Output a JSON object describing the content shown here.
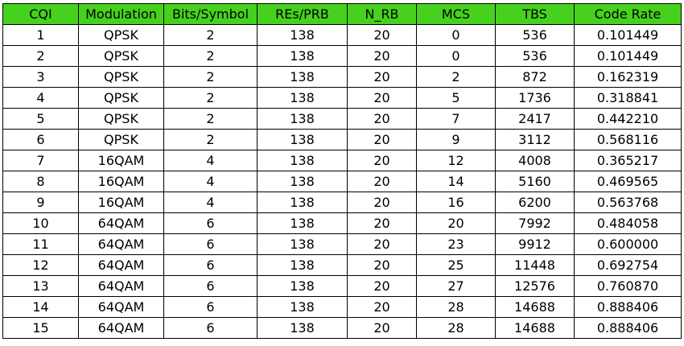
{
  "table": {
    "header_color": "#47d11f",
    "headers": [
      "CQI",
      "Modulation",
      "Bits/Symbol",
      "REs/PRB",
      "N_RB",
      "MCS",
      "TBS",
      "Code Rate"
    ],
    "rows": [
      [
        "1",
        "QPSK",
        "2",
        "138",
        "20",
        "0",
        "536",
        "0.101449"
      ],
      [
        "2",
        "QPSK",
        "2",
        "138",
        "20",
        "0",
        "536",
        "0.101449"
      ],
      [
        "3",
        "QPSK",
        "2",
        "138",
        "20",
        "2",
        "872",
        "0.162319"
      ],
      [
        "4",
        "QPSK",
        "2",
        "138",
        "20",
        "5",
        "1736",
        "0.318841"
      ],
      [
        "5",
        "QPSK",
        "2",
        "138",
        "20",
        "7",
        "2417",
        "0.442210"
      ],
      [
        "6",
        "QPSK",
        "2",
        "138",
        "20",
        "9",
        "3112",
        "0.568116"
      ],
      [
        "7",
        "16QAM",
        "4",
        "138",
        "20",
        "12",
        "4008",
        "0.365217"
      ],
      [
        "8",
        "16QAM",
        "4",
        "138",
        "20",
        "14",
        "5160",
        "0.469565"
      ],
      [
        "9",
        "16QAM",
        "4",
        "138",
        "20",
        "16",
        "6200",
        "0.563768"
      ],
      [
        "10",
        "64QAM",
        "6",
        "138",
        "20",
        "20",
        "7992",
        "0.484058"
      ],
      [
        "11",
        "64QAM",
        "6",
        "138",
        "20",
        "23",
        "9912",
        "0.600000"
      ],
      [
        "12",
        "64QAM",
        "6",
        "138",
        "20",
        "25",
        "11448",
        "0.692754"
      ],
      [
        "13",
        "64QAM",
        "6",
        "138",
        "20",
        "27",
        "12576",
        "0.760870"
      ],
      [
        "14",
        "64QAM",
        "6",
        "138",
        "20",
        "28",
        "14688",
        "0.888406"
      ],
      [
        "15",
        "64QAM",
        "6",
        "138",
        "20",
        "28",
        "14688",
        "0.888406"
      ]
    ]
  }
}
